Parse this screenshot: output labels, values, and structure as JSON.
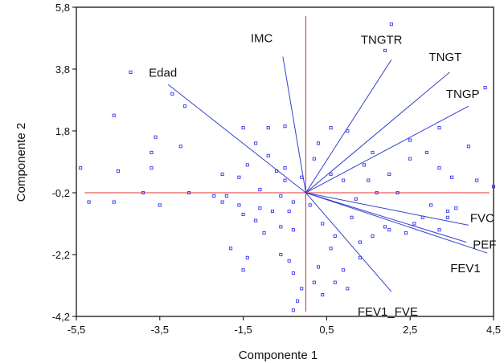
{
  "chart_data": {
    "type": "scatter",
    "subtype": "biplot",
    "xlabel": "Componente 1",
    "ylabel": "Componente 2",
    "xlim": [
      -5.5,
      4.5
    ],
    "ylim": [
      -4.2,
      5.8
    ],
    "x_ticks": [
      "-5,5",
      "-3,5",
      "-1,5",
      "0,5",
      "2,5",
      "4,5"
    ],
    "x_tick_values": [
      -5.5,
      -3.5,
      -1.5,
      0.5,
      2.5,
      4.5
    ],
    "y_ticks": [
      "5,8",
      "3,8",
      "1,8",
      "-0,2",
      "-2,2",
      "-4,2"
    ],
    "y_tick_values": [
      5.8,
      3.8,
      1.8,
      -0.2,
      -2.2,
      -4.2
    ],
    "reference_lines": {
      "x": 0.0,
      "y": -0.2
    },
    "colors": {
      "points": "#3333ee",
      "vectors": "#3344cc",
      "reference": "#ee3333",
      "frame": "#000000"
    },
    "vectors": [
      {
        "label": "IMC",
        "x": -0.55,
        "y": 4.4
      },
      {
        "label": "TNGTR",
        "x": 2.05,
        "y": 4.3
      },
      {
        "label": "TNGT",
        "x": 3.45,
        "y": 3.9
      },
      {
        "label": "TNGP",
        "x": 3.9,
        "y": 2.8
      },
      {
        "label": "Edad",
        "x": -3.3,
        "y": 3.5
      },
      {
        "label": "FVC",
        "x": 3.9,
        "y": -1.05
      },
      {
        "label": "PEF",
        "x": 3.85,
        "y": -1.6
      },
      {
        "label": "FEV1",
        "x": 4.35,
        "y": -1.95
      },
      {
        "label": "FEV1_FVE",
        "x": 2.05,
        "y": -3.2
      }
    ],
    "points": [
      [
        2.05,
        5.25
      ],
      [
        -4.2,
        3.7
      ],
      [
        1.9,
        4.4
      ],
      [
        -3.2,
        3.0
      ],
      [
        4.3,
        3.2
      ],
      [
        -2.9,
        2.6
      ],
      [
        -4.6,
        2.3
      ],
      [
        -3.6,
        1.6
      ],
      [
        -3.7,
        1.1
      ],
      [
        -5.4,
        0.6
      ],
      [
        -4.5,
        0.5
      ],
      [
        -3.7,
        0.6
      ],
      [
        -3.0,
        1.3
      ],
      [
        -4.6,
        -0.5
      ],
      [
        -5.2,
        -0.5
      ],
      [
        -3.5,
        -0.6
      ],
      [
        -3.9,
        -0.2
      ],
      [
        -2.8,
        -0.2
      ],
      [
        -2.0,
        0.4
      ],
      [
        -1.5,
        1.9
      ],
      [
        -0.9,
        1.9
      ],
      [
        -0.5,
        1.95
      ],
      [
        -1.2,
        1.4
      ],
      [
        -0.9,
        1.0
      ],
      [
        -1.4,
        0.7
      ],
      [
        -1.6,
        0.3
      ],
      [
        -1.1,
        -0.1
      ],
      [
        -1.9,
        -0.3
      ],
      [
        -2.2,
        -0.3
      ],
      [
        -2.0,
        -0.5
      ],
      [
        -1.6,
        -0.6
      ],
      [
        -1.5,
        -0.9
      ],
      [
        -1.1,
        -0.7
      ],
      [
        -0.8,
        -0.8
      ],
      [
        -0.4,
        -0.8
      ],
      [
        -0.3,
        -0.5
      ],
      [
        -0.6,
        -0.3
      ],
      [
        -0.7,
        0.5
      ],
      [
        -0.5,
        0.6
      ],
      [
        -0.1,
        0.3
      ],
      [
        -1.2,
        -1.1
      ],
      [
        -1.0,
        -1.5
      ],
      [
        -0.6,
        -1.3
      ],
      [
        -0.3,
        -1.4
      ],
      [
        -1.4,
        -2.3
      ],
      [
        -1.5,
        -2.7
      ],
      [
        -1.8,
        -2.0
      ],
      [
        -0.6,
        -2.2
      ],
      [
        -0.4,
        -2.4
      ],
      [
        -0.3,
        -2.8
      ],
      [
        -0.1,
        -3.3
      ],
      [
        -0.2,
        -3.7
      ],
      [
        -0.3,
        -4.0
      ],
      [
        0.2,
        -3.1
      ],
      [
        0.4,
        -3.5
      ],
      [
        0.7,
        -3.1
      ],
      [
        0.9,
        -2.7
      ],
      [
        1.0,
        -3.3
      ],
      [
        1.3,
        -2.3
      ],
      [
        1.3,
        -1.8
      ],
      [
        1.6,
        -1.6
      ],
      [
        1.9,
        -1.3
      ],
      [
        2.0,
        -1.4
      ],
      [
        2.4,
        -1.5
      ],
      [
        2.6,
        -1.2
      ],
      [
        2.8,
        -1.0
      ],
      [
        3.2,
        -1.4
      ],
      [
        3.4,
        -1.0
      ],
      [
        3.4,
        -0.8
      ],
      [
        3.0,
        -0.6
      ],
      [
        3.6,
        -0.7
      ],
      [
        1.2,
        -0.4
      ],
      [
        1.5,
        0.2
      ],
      [
        1.7,
        -0.2
      ],
      [
        2.0,
        0.4
      ],
      [
        2.5,
        0.9
      ],
      [
        2.9,
        1.1
      ],
      [
        3.2,
        0.6
      ],
      [
        3.5,
        0.3
      ],
      [
        3.9,
        1.3
      ],
      [
        4.1,
        0.2
      ],
      [
        4.5,
        0.0
      ],
      [
        2.5,
        1.5
      ],
      [
        3.2,
        1.9
      ],
      [
        1.6,
        1.1
      ],
      [
        1.0,
        1.8
      ],
      [
        0.6,
        1.9
      ],
      [
        0.3,
        1.4
      ],
      [
        0.2,
        0.9
      ],
      [
        0.6,
        0.4
      ],
      [
        0.9,
        0.2
      ],
      [
        1.4,
        0.7
      ],
      [
        1.1,
        -1.0
      ],
      [
        0.7,
        -1.6
      ],
      [
        0.4,
        -1.2
      ],
      [
        0.1,
        -0.6
      ],
      [
        2.2,
        -0.2
      ],
      [
        0.6,
        -2.0
      ],
      [
        0.3,
        -2.6
      ],
      [
        -0.5,
        0.2
      ]
    ]
  }
}
